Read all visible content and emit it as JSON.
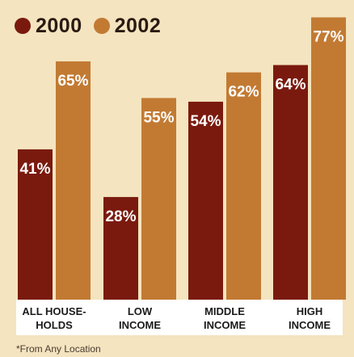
{
  "chart_data": {
    "type": "bar",
    "categories": [
      [
        "ALL HOUSE-",
        "HOLDS"
      ],
      [
        "LOW",
        "INCOME"
      ],
      [
        "MIDDLE",
        "INCOME"
      ],
      [
        "HIGH",
        "INCOME"
      ]
    ],
    "series": [
      {
        "name": "2000",
        "color": "#7a1a0e",
        "values": [
          41,
          28,
          54,
          64
        ],
        "labels": [
          "41%",
          "28%",
          "54%",
          "64%"
        ]
      },
      {
        "name": "2002",
        "color": "#c27a33",
        "values": [
          65,
          55,
          62,
          77
        ],
        "labels": [
          "65%",
          "55%",
          "62%",
          "77%"
        ]
      }
    ],
    "ylim": [
      0,
      80
    ],
    "grid": false,
    "legend_position": "top-left",
    "footnote": "*From Any Location"
  }
}
